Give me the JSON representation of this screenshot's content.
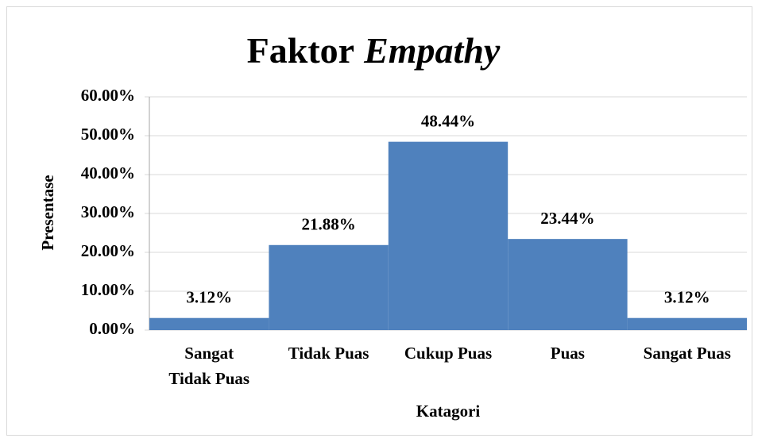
{
  "chart_data": {
    "type": "bar",
    "title": [
      "Faktor",
      "Empathy"
    ],
    "xlabel": "Katagori",
    "ylabel": "Presentase",
    "categories": [
      "Sangat Tidak Puas",
      "Tidak Puas",
      "Cukup Puas",
      "Puas",
      "Sangat Puas"
    ],
    "values": [
      3.12,
      21.88,
      48.44,
      23.44,
      3.12
    ],
    "value_labels": [
      "3.12%",
      "21.88%",
      "48.44%",
      "23.44%",
      "3.12%"
    ],
    "color": "#4f81bd",
    "ylim": [
      0,
      60
    ],
    "yticks": [
      {
        "value": 0,
        "label": "0.00%"
      },
      {
        "value": 10,
        "label": "10.00%"
      },
      {
        "value": 20,
        "label": "20.00%"
      },
      {
        "value": 30,
        "label": "30.00%"
      },
      {
        "value": 40,
        "label": "40.00%"
      },
      {
        "value": 50,
        "label": "50.00%"
      },
      {
        "value": 60,
        "label": "60.00%"
      }
    ],
    "grid": true
  }
}
